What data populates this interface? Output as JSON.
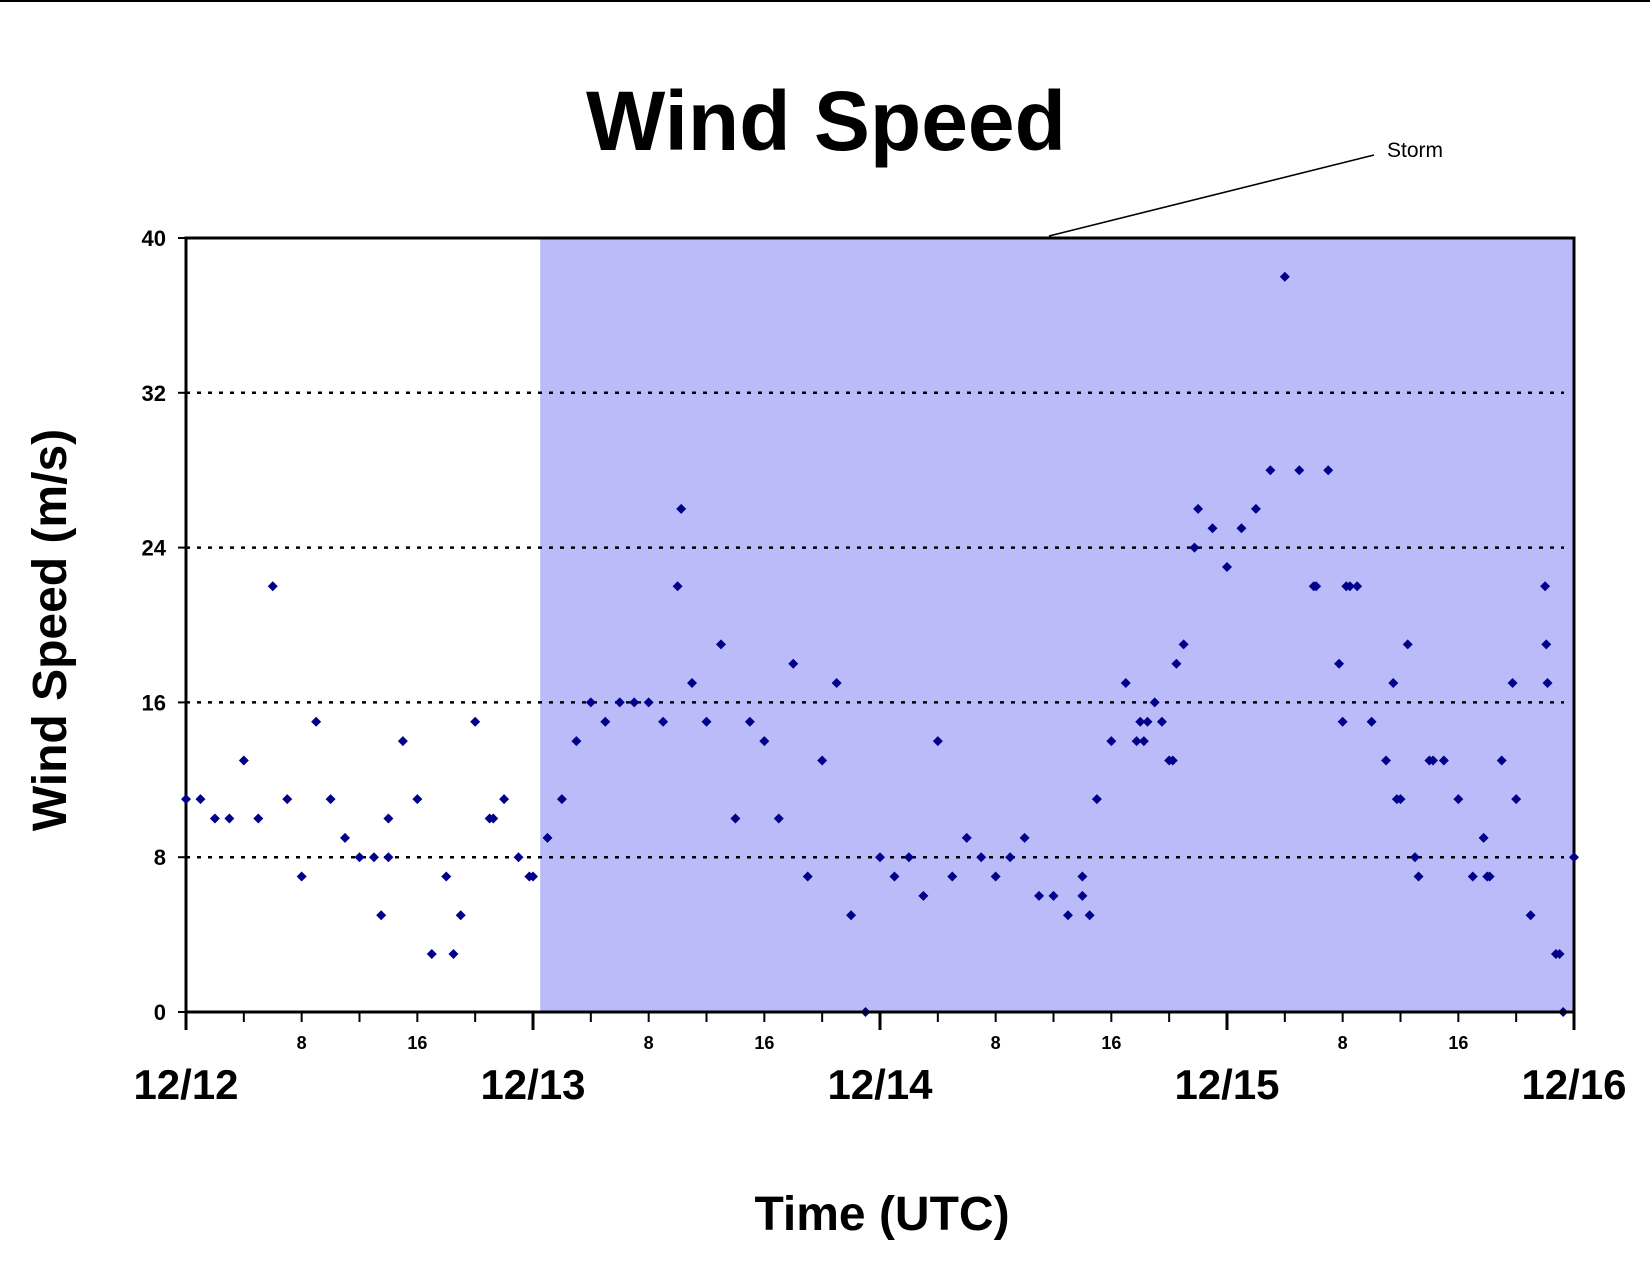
{
  "chart_data": {
    "type": "scatter",
    "title": "Wind Speed",
    "xlabel": "Time (UTC)",
    "ylabel": "Wind Speed (m/s)",
    "ylim": [
      0,
      40
    ],
    "yticks": [
      0,
      8,
      16,
      24,
      32,
      40
    ],
    "xlim": [
      "12/12 00:00",
      "12/16 00:00"
    ],
    "x_day_labels": [
      "12/12",
      "12/13",
      "12/14",
      "12/15",
      "12/16"
    ],
    "x_hour_labels": [
      "8",
      "16"
    ],
    "grid": "horizontal dotted",
    "marker_color": "#00008b",
    "shaded_region": {
      "label": "Storm",
      "x_start": "12/13 00:30",
      "x_end": "12/16 00:00",
      "color": "#bbbbfa"
    },
    "series": [
      {
        "points": [
          [
            "12/12 00:00",
            11
          ],
          [
            "12/12 01:00",
            11
          ],
          [
            "12/12 02:00",
            10
          ],
          [
            "12/12 03:00",
            10
          ],
          [
            "12/12 04:00",
            13
          ],
          [
            "12/12 05:00",
            10
          ],
          [
            "12/12 06:00",
            22
          ],
          [
            "12/12 07:00",
            11
          ],
          [
            "12/12 08:00",
            7
          ],
          [
            "12/12 09:00",
            15
          ],
          [
            "12/12 10:00",
            11
          ],
          [
            "12/12 11:00",
            9
          ],
          [
            "12/12 12:00",
            8
          ],
          [
            "12/12 13:00",
            8
          ],
          [
            "12/12 13:30",
            5
          ],
          [
            "12/12 14:00",
            10
          ],
          [
            "12/12 14:00",
            8
          ],
          [
            "12/12 15:00",
            14
          ],
          [
            "12/12 16:00",
            11
          ],
          [
            "12/12 17:00",
            3
          ],
          [
            "12/12 18:00",
            7
          ],
          [
            "12/12 18:30",
            3
          ],
          [
            "12/12 19:00",
            5
          ],
          [
            "12/12 20:00",
            15
          ],
          [
            "12/12 21:00",
            10
          ],
          [
            "12/12 21:15",
            10
          ],
          [
            "12/12 22:00",
            11
          ],
          [
            "12/12 23:00",
            8
          ],
          [
            "12/12 23:45",
            7
          ],
          [
            "12/13 00:00",
            7
          ],
          [
            "12/13 01:00",
            9
          ],
          [
            "12/13 02:00",
            11
          ],
          [
            "12/13 03:00",
            14
          ],
          [
            "12/13 04:00",
            16
          ],
          [
            "12/13 05:00",
            15
          ],
          [
            "12/13 06:00",
            16
          ],
          [
            "12/13 07:00",
            16
          ],
          [
            "12/13 08:00",
            16
          ],
          [
            "12/13 09:00",
            15
          ],
          [
            "12/13 10:00",
            22
          ],
          [
            "12/13 10:15",
            26
          ],
          [
            "12/13 11:00",
            17
          ],
          [
            "12/13 12:00",
            15
          ],
          [
            "12/13 13:00",
            19
          ],
          [
            "12/13 14:00",
            10
          ],
          [
            "12/13 15:00",
            15
          ],
          [
            "12/13 16:00",
            14
          ],
          [
            "12/13 17:00",
            10
          ],
          [
            "12/13 18:00",
            18
          ],
          [
            "12/13 19:00",
            7
          ],
          [
            "12/13 20:00",
            13
          ],
          [
            "12/13 21:00",
            17
          ],
          [
            "12/13 22:00",
            5
          ],
          [
            "12/13 23:00",
            0
          ],
          [
            "12/14 00:00",
            8
          ],
          [
            "12/14 01:00",
            7
          ],
          [
            "12/14 02:00",
            8
          ],
          [
            "12/14 03:00",
            6
          ],
          [
            "12/14 04:00",
            14
          ],
          [
            "12/14 05:00",
            7
          ],
          [
            "12/14 06:00",
            9
          ],
          [
            "12/14 07:00",
            8
          ],
          [
            "12/14 08:00",
            7
          ],
          [
            "12/14 09:00",
            8
          ],
          [
            "12/14 10:00",
            9
          ],
          [
            "12/14 11:00",
            6
          ],
          [
            "12/14 12:00",
            6
          ],
          [
            "12/14 13:00",
            5
          ],
          [
            "12/14 14:00",
            7
          ],
          [
            "12/14 14:00",
            6
          ],
          [
            "12/14 14:30",
            5
          ],
          [
            "12/14 15:00",
            11
          ],
          [
            "12/14 16:00",
            14
          ],
          [
            "12/14 17:00",
            17
          ],
          [
            "12/14 17:45",
            14
          ],
          [
            "12/14 18:00",
            15
          ],
          [
            "12/14 18:15",
            14
          ],
          [
            "12/14 18:30",
            15
          ],
          [
            "12/14 19:00",
            16
          ],
          [
            "12/14 19:30",
            15
          ],
          [
            "12/14 20:00",
            13
          ],
          [
            "12/14 20:15",
            13
          ],
          [
            "12/14 20:30",
            18
          ],
          [
            "12/14 21:00",
            19
          ],
          [
            "12/14 21:45",
            24
          ],
          [
            "12/14 22:00",
            26
          ],
          [
            "12/14 23:00",
            25
          ],
          [
            "12/15 00:00",
            23
          ],
          [
            "12/15 01:00",
            25
          ],
          [
            "12/15 02:00",
            26
          ],
          [
            "12/15 03:00",
            28
          ],
          [
            "12/15 04:00",
            38
          ],
          [
            "12/15 05:00",
            28
          ],
          [
            "12/15 06:00",
            22
          ],
          [
            "12/15 06:10",
            22
          ],
          [
            "12/15 07:00",
            28
          ],
          [
            "12/15 07:45",
            18
          ],
          [
            "12/15 08:00",
            15
          ],
          [
            "12/15 08:15",
            22
          ],
          [
            "12/15 08:30",
            22
          ],
          [
            "12/15 09:00",
            22
          ],
          [
            "12/15 10:00",
            15
          ],
          [
            "12/15 11:00",
            13
          ],
          [
            "12/15 11:30",
            17
          ],
          [
            "12/15 11:45",
            11
          ],
          [
            "12/15 12:00",
            11
          ],
          [
            "12/15 12:30",
            19
          ],
          [
            "12/15 13:00",
            8
          ],
          [
            "12/15 13:15",
            7
          ],
          [
            "12/15 14:00",
            13
          ],
          [
            "12/15 14:15",
            13
          ],
          [
            "12/15 15:00",
            13
          ],
          [
            "12/15 16:00",
            11
          ],
          [
            "12/15 17:00",
            7
          ],
          [
            "12/15 17:45",
            9
          ],
          [
            "12/15 18:00",
            7
          ],
          [
            "12/15 18:10",
            7
          ],
          [
            "12/15 19:00",
            13
          ],
          [
            "12/15 19:45",
            17
          ],
          [
            "12/15 20:00",
            11
          ],
          [
            "12/15 21:00",
            5
          ],
          [
            "12/15 22:00",
            22
          ],
          [
            "12/15 22:05",
            19
          ],
          [
            "12/15 22:10",
            17
          ],
          [
            "12/15 22:45",
            3
          ],
          [
            "12/15 23:00",
            3
          ],
          [
            "12/15 23:15",
            0
          ],
          [
            "12/16 00:00",
            8
          ]
        ]
      }
    ]
  }
}
